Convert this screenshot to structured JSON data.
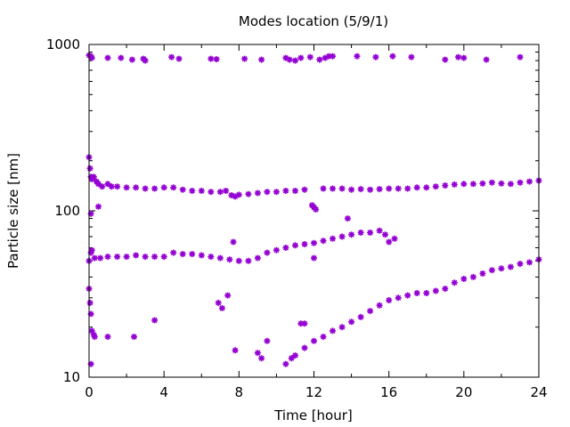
{
  "chart_data": {
    "type": "scatter",
    "title": "Modes location (5/9/1)",
    "xlabel": "Time [hour]",
    "ylabel": "Particle size [nm]",
    "xlim": [
      0,
      24
    ],
    "ylim": [
      10,
      1000
    ],
    "yscale": "log",
    "xticks": [
      0,
      4,
      8,
      12,
      16,
      20,
      24
    ],
    "xtick_labels": [
      "0",
      "4",
      "8",
      "12",
      "16",
      "20",
      "24"
    ],
    "yticks": [
      10,
      100,
      1000
    ],
    "ytick_labels": [
      "10",
      "100",
      "1000"
    ],
    "grid": false,
    "legend": "none",
    "marker": "star",
    "series": [
      {
        "color": "#9400d3",
        "points": [
          [
            0.0,
            860
          ],
          [
            0.1,
            850
          ],
          [
            0.15,
            830
          ],
          [
            1.0,
            830
          ],
          [
            1.7,
            830
          ],
          [
            2.3,
            810
          ],
          [
            2.9,
            820
          ],
          [
            3.0,
            800
          ],
          [
            4.4,
            840
          ],
          [
            4.8,
            820
          ],
          [
            6.5,
            820
          ],
          [
            6.8,
            815
          ],
          [
            8.3,
            820
          ],
          [
            9.2,
            810
          ],
          [
            10.5,
            830
          ],
          [
            10.7,
            810
          ],
          [
            11.0,
            800
          ],
          [
            11.3,
            830
          ],
          [
            11.8,
            840
          ],
          [
            12.3,
            810
          ],
          [
            12.6,
            830
          ],
          [
            12.8,
            850
          ],
          [
            13.0,
            850
          ],
          [
            14.3,
            850
          ],
          [
            15.3,
            840
          ],
          [
            16.2,
            850
          ],
          [
            17.2,
            840
          ],
          [
            19.0,
            810
          ],
          [
            19.7,
            840
          ],
          [
            20.0,
            830
          ],
          [
            21.2,
            810
          ],
          [
            23.0,
            840
          ],
          [
            0.0,
            210
          ],
          [
            0.05,
            180
          ],
          [
            0.1,
            160
          ],
          [
            0.15,
            155
          ],
          [
            0.25,
            160
          ],
          [
            0.4,
            150
          ],
          [
            0.5,
            145
          ],
          [
            0.7,
            140
          ],
          [
            1.0,
            145
          ],
          [
            1.2,
            140
          ],
          [
            1.5,
            140
          ],
          [
            2.0,
            138
          ],
          [
            2.5,
            138
          ],
          [
            3.0,
            136
          ],
          [
            3.5,
            136
          ],
          [
            4.0,
            138
          ],
          [
            4.5,
            138
          ],
          [
            5.0,
            134
          ],
          [
            5.5,
            132
          ],
          [
            6.0,
            132
          ],
          [
            6.5,
            130
          ],
          [
            7.0,
            130
          ],
          [
            7.3,
            132
          ],
          [
            7.6,
            124
          ],
          [
            7.8,
            122
          ],
          [
            8.0,
            125
          ],
          [
            8.5,
            126
          ],
          [
            9.0,
            128
          ],
          [
            9.5,
            130
          ],
          [
            10.0,
            130
          ],
          [
            10.5,
            132
          ],
          [
            11.0,
            132
          ],
          [
            11.5,
            134
          ],
          [
            12.5,
            136
          ],
          [
            13.0,
            136
          ],
          [
            13.5,
            136
          ],
          [
            14.0,
            134
          ],
          [
            14.5,
            135
          ],
          [
            15.0,
            134
          ],
          [
            15.5,
            135
          ],
          [
            16.0,
            136
          ],
          [
            16.5,
            136
          ],
          [
            17.0,
            136
          ],
          [
            17.5,
            138
          ],
          [
            18.0,
            138
          ],
          [
            18.5,
            140
          ],
          [
            19.0,
            142
          ],
          [
            19.5,
            144
          ],
          [
            20.0,
            145
          ],
          [
            20.5,
            145
          ],
          [
            21.0,
            146
          ],
          [
            21.5,
            148
          ],
          [
            22.0,
            146
          ],
          [
            22.5,
            145
          ],
          [
            23.0,
            148
          ],
          [
            23.5,
            150
          ],
          [
            24.0,
            152
          ],
          [
            11.9,
            108
          ],
          [
            12.0,
            105
          ],
          [
            12.1,
            102
          ],
          [
            0.1,
            96
          ],
          [
            0.5,
            106
          ],
          [
            12.0,
            52
          ],
          [
            13.8,
            90
          ],
          [
            7.7,
            65
          ],
          [
            0.0,
            50
          ],
          [
            0.1,
            56
          ],
          [
            0.15,
            58
          ],
          [
            0.3,
            52
          ],
          [
            0.6,
            52
          ],
          [
            1.0,
            53
          ],
          [
            1.5,
            53
          ],
          [
            2.0,
            53
          ],
          [
            2.5,
            54
          ],
          [
            3.0,
            53
          ],
          [
            3.5,
            53
          ],
          [
            4.0,
            53
          ],
          [
            4.5,
            56
          ],
          [
            5.0,
            55
          ],
          [
            5.5,
            55
          ],
          [
            6.0,
            54
          ],
          [
            6.5,
            53
          ],
          [
            7.0,
            52
          ],
          [
            7.5,
            51
          ],
          [
            8.0,
            50
          ],
          [
            8.5,
            50
          ],
          [
            9.0,
            52
          ],
          [
            9.5,
            56
          ],
          [
            10.0,
            58
          ],
          [
            10.5,
            60
          ],
          [
            11.0,
            62
          ],
          [
            11.5,
            63
          ],
          [
            12.0,
            64
          ],
          [
            12.5,
            66
          ],
          [
            13.0,
            68
          ],
          [
            13.5,
            70
          ],
          [
            14.0,
            72
          ],
          [
            14.5,
            74
          ],
          [
            15.0,
            74
          ],
          [
            15.5,
            76
          ],
          [
            15.8,
            72
          ],
          [
            16.0,
            65
          ],
          [
            16.3,
            68
          ],
          [
            0.0,
            34
          ],
          [
            0.05,
            28
          ],
          [
            0.1,
            24
          ],
          [
            0.15,
            19
          ],
          [
            0.25,
            18
          ],
          [
            0.3,
            17.5
          ],
          [
            1.0,
            17.5
          ],
          [
            2.4,
            17.5
          ],
          [
            3.5,
            22
          ],
          [
            6.9,
            28
          ],
          [
            7.1,
            26
          ],
          [
            7.4,
            31
          ],
          [
            7.8,
            14.5
          ],
          [
            9.0,
            14
          ],
          [
            9.2,
            13
          ],
          [
            9.5,
            16.5
          ],
          [
            0.1,
            12
          ],
          [
            11.3,
            21
          ],
          [
            11.5,
            21
          ],
          [
            10.5,
            12
          ],
          [
            10.8,
            13
          ],
          [
            11.0,
            13.5
          ],
          [
            11.5,
            15
          ],
          [
            12.0,
            16.5
          ],
          [
            12.5,
            17.5
          ],
          [
            13.0,
            19
          ],
          [
            13.5,
            20
          ],
          [
            14.0,
            21.5
          ],
          [
            14.5,
            23
          ],
          [
            15.0,
            25
          ],
          [
            15.5,
            27
          ],
          [
            16.0,
            29
          ],
          [
            16.5,
            30
          ],
          [
            17.0,
            31
          ],
          [
            17.5,
            32
          ],
          [
            18.0,
            32
          ],
          [
            18.5,
            33
          ],
          [
            19.0,
            34
          ],
          [
            19.5,
            37
          ],
          [
            20.0,
            39
          ],
          [
            20.5,
            40
          ],
          [
            21.0,
            42
          ],
          [
            21.5,
            44
          ],
          [
            22.0,
            45
          ],
          [
            22.5,
            46
          ],
          [
            23.0,
            48
          ],
          [
            23.5,
            49
          ],
          [
            24.0,
            51
          ]
        ]
      }
    ]
  }
}
